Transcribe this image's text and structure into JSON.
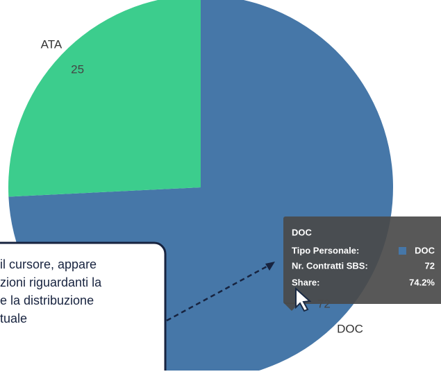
{
  "chart_data": {
    "type": "pie",
    "categories": [
      "DOC",
      "ATA"
    ],
    "values": [
      72,
      25
    ],
    "colors": [
      "#4677a8",
      "#3ccd8d"
    ]
  },
  "tooltip": {
    "rows": [
      "Tipo Personale:",
      "Nr. Contratti SBS:",
      "Share:"
    ],
    "share": "74.2%"
  },
  "callout": {
    "lines": [
      "il cursore, appare",
      "zioni riguardanti la",
      "e la distribuzione",
      "tuale"
    ]
  }
}
